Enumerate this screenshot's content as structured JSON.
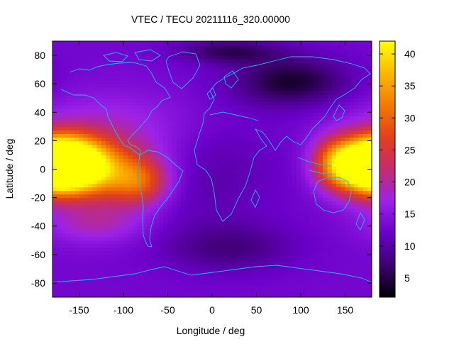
{
  "chart_data": {
    "type": "heatmap",
    "title": "VTEC / TECU 20211116_320.00000",
    "xlabel": "Longitude / deg",
    "ylabel": "Latitude / deg",
    "xlim": [
      -180,
      180
    ],
    "ylim": [
      -90,
      90
    ],
    "xticks": [
      -150,
      -100,
      -50,
      0,
      50,
      100,
      150
    ],
    "yticks": [
      -80,
      -60,
      -40,
      -20,
      0,
      20,
      40,
      60,
      80
    ],
    "colorbar": {
      "range": [
        2,
        42
      ],
      "ticks": [
        5,
        10,
        15,
        20,
        25,
        30,
        35,
        40
      ],
      "palette": [
        "#000000",
        "#3d0070",
        "#6a00c8",
        "#9c22e8",
        "#c22d6e",
        "#e2401a",
        "#f37b00",
        "#fbb800",
        "#ffff00"
      ]
    },
    "field_model": {
      "base": 13,
      "features": [
        {
          "lon": -165,
          "lat": 5,
          "amp": 30,
          "slon": 30,
          "slat": 13
        },
        {
          "lon": -120,
          "lat": -2,
          "amp": 17,
          "slon": 42,
          "slat": 15
        },
        {
          "lon": -80,
          "lat": -10,
          "amp": 10,
          "slon": 22,
          "slat": 11
        },
        {
          "lon": 175,
          "lat": 2,
          "amp": 27,
          "slon": 28,
          "slat": 13
        },
        {
          "lon": 138,
          "lat": 5,
          "amp": 12,
          "slon": 18,
          "slat": 12
        },
        {
          "lon": -110,
          "lat": 30,
          "amp": 5,
          "slon": 70,
          "slat": 18
        },
        {
          "lon": -130,
          "lat": -38,
          "amp": 6,
          "slon": 40,
          "slat": 10
        },
        {
          "lon": 90,
          "lat": 62,
          "amp": -9,
          "slon": 45,
          "slat": 12
        },
        {
          "lon": 20,
          "lat": -55,
          "amp": -5,
          "slon": 50,
          "slat": 12
        },
        {
          "lon": -10,
          "lat": 0,
          "amp": -3,
          "slon": 60,
          "slat": 30
        },
        {
          "lon": 20,
          "lat": 83,
          "amp": -7,
          "slon": 40,
          "slat": 6
        }
      ]
    }
  }
}
